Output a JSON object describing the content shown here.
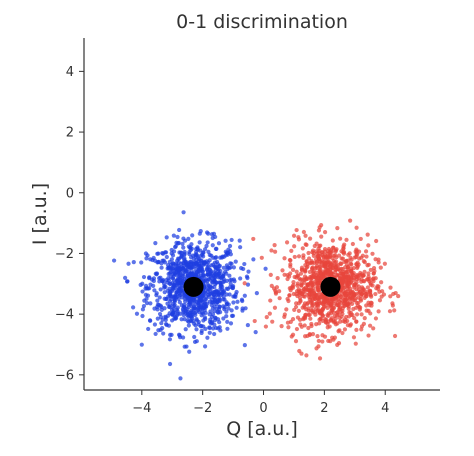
{
  "chart_data": {
    "type": "scatter",
    "title": "0-1 discrimination",
    "xlabel": "Q [a.u.]",
    "ylabel": "I [a.u.]",
    "xlim": [
      -5.9,
      5.8
    ],
    "ylim": [
      -6.5,
      5.1
    ],
    "x_ticks": [
      -4,
      -2,
      0,
      2,
      4
    ],
    "x_tick_labels": [
      "−4",
      "−2",
      "0",
      "2",
      "4"
    ],
    "y_ticks": [
      -6,
      -4,
      -2,
      0,
      2,
      4
    ],
    "y_tick_labels": [
      "−6",
      "−4",
      "−2",
      "0",
      "2",
      "4"
    ],
    "grid": false,
    "legend": "none",
    "series": [
      {
        "color": "#1f3fe0",
        "center": [
          -2.3,
          -3.1
        ],
        "std": 0.75,
        "n_points": 1000
      },
      {
        "color": "#e8453c",
        "center": [
          2.2,
          -3.1
        ],
        "std": 0.75,
        "n_points": 1000
      }
    ],
    "centroids": [
      {
        "x": -2.3,
        "y": -3.1,
        "color": "#000000"
      },
      {
        "x": 2.2,
        "y": -3.1,
        "color": "#000000"
      }
    ]
  }
}
